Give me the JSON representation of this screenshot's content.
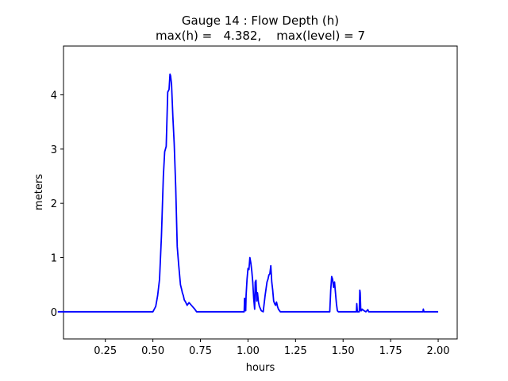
{
  "chart_data": {
    "type": "line",
    "title": "Gauge 14 : Flow Depth (h)",
    "subtitle": "max(h) =   4.382,    max(level) = 7",
    "xlabel": "hours",
    "ylabel": "meters",
    "xlim": [
      0.03,
      2.1
    ],
    "ylim": [
      -0.5,
      4.9
    ],
    "x_ticks": [
      0.25,
      0.5,
      0.75,
      1.0,
      1.25,
      1.5,
      1.75,
      2.0
    ],
    "x_tick_labels": [
      "0.25",
      "0.50",
      "0.75",
      "1.00",
      "1.25",
      "1.50",
      "1.75",
      "2.00"
    ],
    "y_ticks": [
      0,
      1,
      2,
      3,
      4
    ],
    "y_tick_labels": [
      "0",
      "1",
      "2",
      "3",
      "4"
    ],
    "grid": false,
    "color": "#0000ff",
    "series": [
      {
        "x": [
          0.0,
          0.5,
          0.515,
          0.525,
          0.535,
          0.545,
          0.555,
          0.562,
          0.57,
          0.578,
          0.585,
          0.59,
          0.593,
          0.598,
          0.605,
          0.612,
          0.62,
          0.628,
          0.636,
          0.645,
          0.652,
          0.655,
          0.66,
          0.665,
          0.672,
          0.68,
          0.69,
          0.7,
          0.72,
          0.73,
          0.735,
          0.745,
          0.76,
          0.78,
          0.98,
          0.982,
          0.985,
          0.988,
          0.99,
          0.995,
          1.0,
          1.005,
          1.01,
          1.015,
          1.02,
          1.025,
          1.03,
          1.035,
          1.038,
          1.042,
          1.046,
          1.05,
          1.055,
          1.06,
          1.07,
          1.08,
          1.09,
          1.1,
          1.105,
          1.11,
          1.115,
          1.12,
          1.125,
          1.13,
          1.135,
          1.14,
          1.145,
          1.15,
          1.155,
          1.16,
          1.17,
          1.43,
          1.435,
          1.44,
          1.445,
          1.45,
          1.455,
          1.46,
          1.465,
          1.47,
          1.475,
          1.48,
          1.5,
          1.57,
          1.572,
          1.575,
          1.585,
          1.588,
          1.59,
          1.593,
          1.597,
          1.6,
          1.61,
          1.62,
          1.63,
          1.635,
          1.64,
          1.92,
          1.922,
          1.925,
          1.93,
          2.0
        ],
        "y": [
          0.0,
          0.0,
          0.1,
          0.3,
          0.6,
          1.4,
          2.5,
          2.95,
          3.05,
          4.05,
          4.1,
          4.382,
          4.35,
          4.2,
          3.6,
          3.1,
          2.3,
          1.2,
          0.85,
          0.5,
          0.4,
          0.35,
          0.3,
          0.22,
          0.18,
          0.12,
          0.17,
          0.13,
          0.05,
          0.0,
          0.0,
          0.0,
          0.0,
          0.0,
          0.0,
          0.25,
          0.05,
          0.02,
          0.3,
          0.6,
          0.8,
          0.78,
          1.0,
          0.9,
          0.75,
          0.55,
          0.25,
          0.05,
          0.55,
          0.58,
          0.2,
          0.35,
          0.18,
          0.1,
          0.02,
          0.0,
          0.3,
          0.55,
          0.6,
          0.68,
          0.7,
          0.85,
          0.55,
          0.4,
          0.2,
          0.15,
          0.12,
          0.18,
          0.1,
          0.05,
          0.0,
          0.0,
          0.4,
          0.65,
          0.6,
          0.45,
          0.55,
          0.35,
          0.15,
          0.02,
          0.0,
          0.0,
          0.0,
          0.0,
          0.15,
          0.0,
          0.0,
          0.4,
          0.35,
          0.02,
          0.02,
          0.05,
          0.02,
          0.0,
          0.04,
          0.0,
          0.0,
          0.0,
          0.05,
          0.0,
          0.0,
          0.0
        ]
      }
    ]
  }
}
